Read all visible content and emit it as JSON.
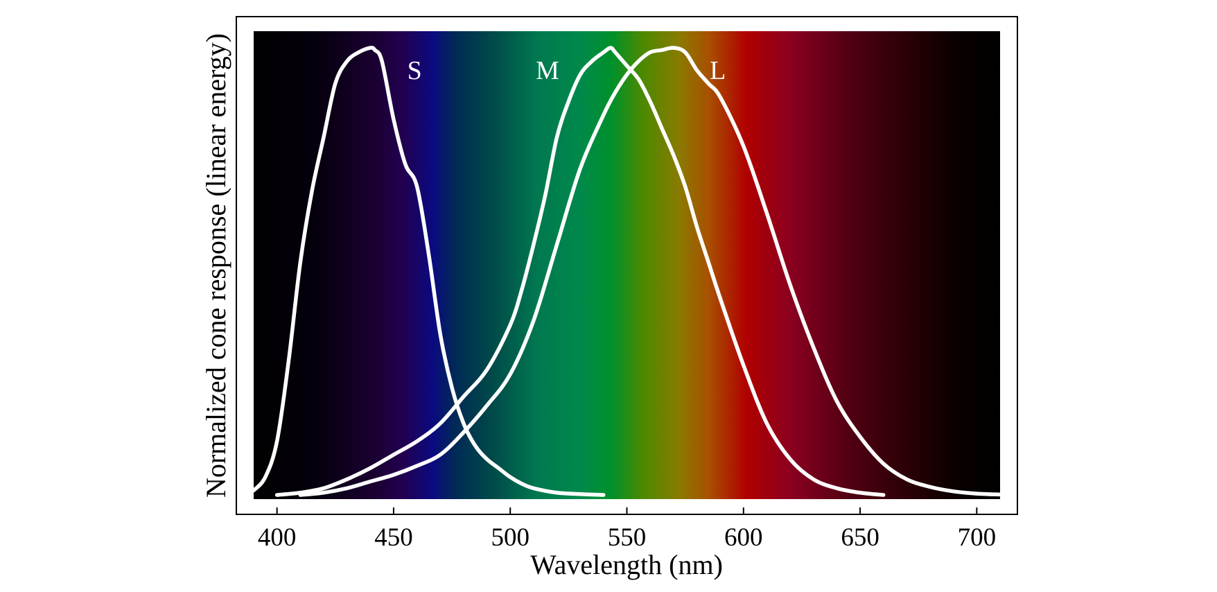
{
  "chart_data": {
    "type": "line",
    "title": "",
    "xlabel": "Wavelength (nm)",
    "ylabel": "Normalized cone response (linear energy)",
    "xlim": [
      390,
      710
    ],
    "ylim": [
      0,
      1
    ],
    "xticks": [
      400,
      450,
      500,
      550,
      600,
      650,
      700
    ],
    "yticks": [],
    "grid": false,
    "legend": "none",
    "background": "visible spectrum gradient",
    "series": [
      {
        "name": "S",
        "color": "#ffffff",
        "label_x": 459,
        "x": [
          390,
          395,
          400,
          405,
          410,
          415,
          420,
          425,
          430,
          435,
          440,
          442,
          445,
          450,
          455,
          460,
          465,
          470,
          475,
          480,
          485,
          490,
          495,
          500,
          505,
          510,
          520,
          530,
          540
        ],
        "y": [
          0.01,
          0.04,
          0.12,
          0.3,
          0.52,
          0.68,
          0.8,
          0.92,
          0.97,
          0.99,
          1.0,
          0.995,
          0.97,
          0.84,
          0.74,
          0.69,
          0.54,
          0.36,
          0.24,
          0.16,
          0.11,
          0.08,
          0.06,
          0.04,
          0.025,
          0.015,
          0.005,
          0.002,
          0.0
        ]
      },
      {
        "name": "M",
        "color": "#ffffff",
        "label_x": 516,
        "x": [
          400,
          410,
          420,
          430,
          440,
          450,
          460,
          470,
          480,
          490,
          500,
          505,
          510,
          515,
          520,
          525,
          530,
          535,
          540,
          543,
          545,
          550,
          555,
          560,
          565,
          570,
          575,
          580,
          585,
          590,
          600,
          610,
          620,
          630,
          640,
          650,
          660
        ],
        "y": [
          0.0,
          0.005,
          0.015,
          0.035,
          0.06,
          0.09,
          0.12,
          0.16,
          0.22,
          0.28,
          0.38,
          0.46,
          0.56,
          0.67,
          0.8,
          0.88,
          0.94,
          0.97,
          0.99,
          1.0,
          0.99,
          0.96,
          0.93,
          0.88,
          0.82,
          0.76,
          0.69,
          0.6,
          0.52,
          0.44,
          0.29,
          0.16,
          0.08,
          0.035,
          0.015,
          0.005,
          0.0
        ]
      },
      {
        "name": "L",
        "color": "#ffffff",
        "label_x": 589,
        "x": [
          410,
          420,
          430,
          440,
          450,
          460,
          470,
          480,
          490,
          500,
          510,
          520,
          530,
          540,
          545,
          550,
          555,
          560,
          565,
          570,
          575,
          580,
          585,
          590,
          600,
          610,
          620,
          630,
          640,
          650,
          660,
          670,
          680,
          690,
          700,
          710
        ],
        "y": [
          0.0,
          0.005,
          0.015,
          0.03,
          0.045,
          0.065,
          0.09,
          0.14,
          0.2,
          0.27,
          0.39,
          0.56,
          0.73,
          0.85,
          0.9,
          0.94,
          0.97,
          0.99,
          0.995,
          1.0,
          0.99,
          0.95,
          0.92,
          0.89,
          0.78,
          0.63,
          0.47,
          0.33,
          0.21,
          0.13,
          0.07,
          0.035,
          0.018,
          0.008,
          0.003,
          0.001
        ]
      }
    ]
  }
}
